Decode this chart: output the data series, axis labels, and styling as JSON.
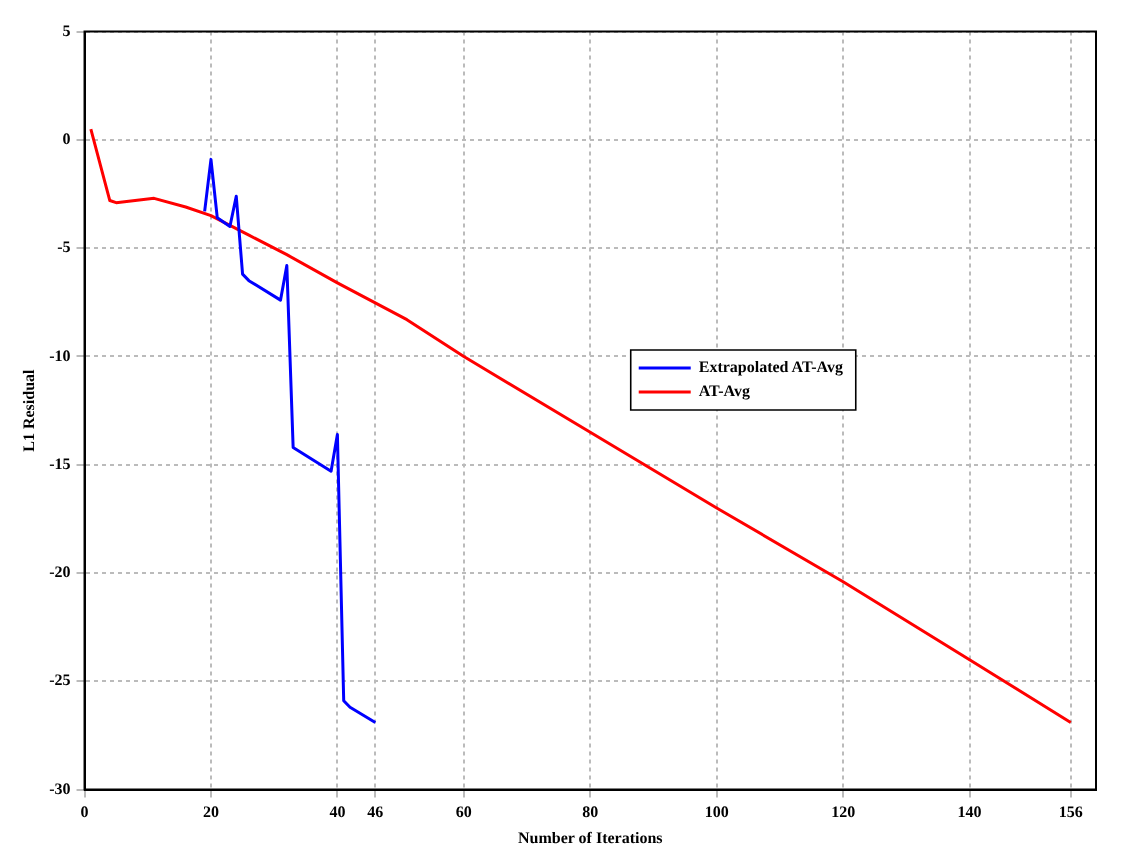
{
  "chart_data": {
    "type": "line",
    "xlabel": "Number of Iterations",
    "ylabel": "L1 Residual",
    "xlim": [
      0,
      160
    ],
    "ylim": [
      -30,
      5
    ],
    "xticks": [
      0,
      20,
      40,
      46,
      60,
      80,
      100,
      120,
      140,
      156
    ],
    "yticks": [
      -30,
      -25,
      -20,
      -15,
      -10,
      -5,
      0,
      5
    ],
    "grid": true,
    "legend": "right",
    "marker": "none",
    "line_style": "solid",
    "series": [
      {
        "name": "Extrapolated AT-Avg",
        "color": "#0000ff",
        "x": [
          19,
          20,
          21,
          23,
          24,
          25,
          26,
          31,
          32,
          33,
          39,
          40,
          41,
          42,
          46
        ],
        "values": [
          -3.3,
          -0.9,
          -3.6,
          -4.0,
          -2.6,
          -6.2,
          -6.5,
          -7.4,
          -5.8,
          -14.2,
          -15.3,
          -13.6,
          -25.9,
          -26.2,
          -26.9
        ]
      },
      {
        "name": "AT-Avg",
        "color": "#ff0000",
        "x": [
          1,
          4,
          5,
          11,
          16,
          20,
          26,
          32,
          40,
          51,
          60,
          80,
          100,
          120,
          140,
          156
        ],
        "values": [
          0.5,
          -2.8,
          -2.9,
          -2.7,
          -3.1,
          -3.5,
          -4.4,
          -5.3,
          -6.6,
          -8.3,
          -10.0,
          -13.5,
          -17.0,
          -20.4,
          -24.0,
          -26.9
        ]
      }
    ]
  }
}
